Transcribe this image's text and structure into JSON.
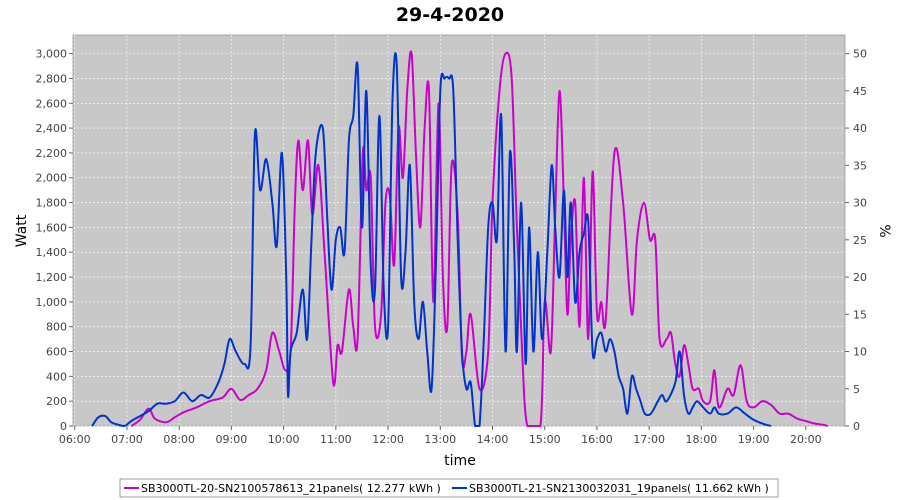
{
  "chart_data": {
    "type": "line",
    "title": "29-4-2020",
    "xlabel": "time",
    "ylabel": "Watt",
    "y2label": "%",
    "x_ticks": [
      "06:00",
      "07:00",
      "08:00",
      "09:00",
      "10:00",
      "11:00",
      "12:00",
      "13:00",
      "14:00",
      "15:00",
      "16:00",
      "17:00",
      "18:00",
      "19:00",
      "20:00"
    ],
    "xlim": [
      "05:58",
      "20:45"
    ],
    "ylim": [
      0,
      3150
    ],
    "y_ticks": [
      "0",
      "200",
      "400",
      "600",
      "800",
      "1,000",
      "1,200",
      "1,400",
      "1,600",
      "1,800",
      "2,000",
      "2,200",
      "2,400",
      "2,600",
      "2,800",
      "3,000"
    ],
    "y2lim": [
      0,
      52.5
    ],
    "y2_ticks": [
      "0",
      "5",
      "10",
      "15",
      "20",
      "25",
      "30",
      "35",
      "40",
      "45",
      "50"
    ],
    "grid": true,
    "legend_position": "bottom",
    "colors": {
      "plot_bg": "#c8c8c8",
      "grid": "#ffffff"
    },
    "series": [
      {
        "name": "SB3000TL-20-SN2100578613_21panels( 12.277 kWh )",
        "color": "#cc00cc",
        "points": [
          [
            "07:05",
            0
          ],
          [
            "07:15",
            50
          ],
          [
            "07:25",
            140
          ],
          [
            "07:32",
            60
          ],
          [
            "07:45",
            30
          ],
          [
            "07:55",
            70
          ],
          [
            "08:05",
            110
          ],
          [
            "08:20",
            150
          ],
          [
            "08:35",
            200
          ],
          [
            "08:50",
            230
          ],
          [
            "09:00",
            300
          ],
          [
            "09:10",
            210
          ],
          [
            "09:20",
            250
          ],
          [
            "09:30",
            300
          ],
          [
            "09:40",
            450
          ],
          [
            "09:47",
            750
          ],
          [
            "09:55",
            600
          ],
          [
            "10:02",
            450
          ],
          [
            "10:08",
            600
          ],
          [
            "10:13",
            1800
          ],
          [
            "10:17",
            2300
          ],
          [
            "10:22",
            1900
          ],
          [
            "10:28",
            2300
          ],
          [
            "10:33",
            1700
          ],
          [
            "10:40",
            2100
          ],
          [
            "10:47",
            1400
          ],
          [
            "10:57",
            350
          ],
          [
            "11:02",
            650
          ],
          [
            "11:07",
            600
          ],
          [
            "11:15",
            1100
          ],
          [
            "11:20",
            800
          ],
          [
            "11:25",
            700
          ],
          [
            "11:31",
            2200
          ],
          [
            "11:35",
            1900
          ],
          [
            "11:40",
            2000
          ],
          [
            "11:45",
            800
          ],
          [
            "11:52",
            900
          ],
          [
            "11:57",
            1800
          ],
          [
            "12:02",
            1850
          ],
          [
            "12:07",
            1300
          ],
          [
            "12:12",
            2400
          ],
          [
            "12:17",
            2000
          ],
          [
            "12:22",
            2700
          ],
          [
            "12:27",
            3000
          ],
          [
            "12:32",
            2200
          ],
          [
            "12:37",
            1600
          ],
          [
            "12:42",
            2400
          ],
          [
            "12:47",
            2700
          ],
          [
            "12:52",
            1000
          ],
          [
            "12:58",
            2600
          ],
          [
            "13:03",
            1200
          ],
          [
            "13:08",
            800
          ],
          [
            "13:13",
            2100
          ],
          [
            "13:20",
            1700
          ],
          [
            "13:25",
            550
          ],
          [
            "13:30",
            600
          ],
          [
            "13:35",
            900
          ],
          [
            "13:45",
            300
          ],
          [
            "13:55",
            600
          ],
          [
            "14:00",
            1800
          ],
          [
            "14:08",
            2700
          ],
          [
            "14:15",
            3000
          ],
          [
            "14:22",
            2800
          ],
          [
            "14:28",
            1600
          ],
          [
            "14:34",
            600
          ],
          [
            "14:40",
            0
          ],
          [
            "14:55",
            0
          ],
          [
            "15:00",
            1000
          ],
          [
            "15:07",
            600
          ],
          [
            "15:12",
            1700
          ],
          [
            "15:17",
            2700
          ],
          [
            "15:22",
            1800
          ],
          [
            "15:26",
            900
          ],
          [
            "15:30",
            1500
          ],
          [
            "15:35",
            1800
          ],
          [
            "15:40",
            800
          ],
          [
            "15:45",
            2000
          ],
          [
            "15:50",
            700
          ],
          [
            "15:55",
            2050
          ],
          [
            "16:00",
            900
          ],
          [
            "16:05",
            1000
          ],
          [
            "16:10",
            850
          ],
          [
            "16:20",
            2200
          ],
          [
            "16:30",
            1800
          ],
          [
            "16:40",
            900
          ],
          [
            "16:46",
            1500
          ],
          [
            "16:54",
            1800
          ],
          [
            "17:01",
            1500
          ],
          [
            "17:07",
            1500
          ],
          [
            "17:12",
            700
          ],
          [
            "17:20",
            700
          ],
          [
            "17:25",
            750
          ],
          [
            "17:30",
            500
          ],
          [
            "17:35",
            400
          ],
          [
            "17:40",
            650
          ],
          [
            "17:45",
            500
          ],
          [
            "17:50",
            300
          ],
          [
            "17:57",
            300
          ],
          [
            "18:02",
            200
          ],
          [
            "18:10",
            200
          ],
          [
            "18:15",
            450
          ],
          [
            "18:20",
            150
          ],
          [
            "18:30",
            300
          ],
          [
            "18:37",
            250
          ],
          [
            "18:45",
            490
          ],
          [
            "18:52",
            200
          ],
          [
            "19:00",
            150
          ],
          [
            "19:10",
            200
          ],
          [
            "19:20",
            170
          ],
          [
            "19:30",
            100
          ],
          [
            "19:40",
            100
          ],
          [
            "19:50",
            60
          ],
          [
            "20:00",
            40
          ],
          [
            "20:10",
            20
          ],
          [
            "20:20",
            10
          ],
          [
            "20:25",
            0
          ]
        ]
      },
      {
        "name": "SB3000TL-21-SN2130032031_19panels( 11.662 kWh )",
        "color": "#0033cc",
        "points": [
          [
            "06:20",
            0
          ],
          [
            "06:27",
            70
          ],
          [
            "06:35",
            80
          ],
          [
            "06:42",
            30
          ],
          [
            "06:50",
            10
          ],
          [
            "06:57",
            0
          ],
          [
            "07:05",
            40
          ],
          [
            "07:15",
            80
          ],
          [
            "07:25",
            120
          ],
          [
            "07:35",
            180
          ],
          [
            "07:45",
            180
          ],
          [
            "07:55",
            200
          ],
          [
            "08:05",
            270
          ],
          [
            "08:15",
            200
          ],
          [
            "08:25",
            250
          ],
          [
            "08:35",
            230
          ],
          [
            "08:45",
            350
          ],
          [
            "08:52",
            500
          ],
          [
            "08:58",
            700
          ],
          [
            "09:05",
            600
          ],
          [
            "09:15",
            500
          ],
          [
            "09:22",
            650
          ],
          [
            "09:27",
            2350
          ],
          [
            "09:33",
            1900
          ],
          [
            "09:40",
            2150
          ],
          [
            "09:47",
            1800
          ],
          [
            "09:52",
            1450
          ],
          [
            "09:58",
            2200
          ],
          [
            "10:03",
            1200
          ],
          [
            "10:05",
            250
          ],
          [
            "10:08",
            600
          ],
          [
            "10:15",
            750
          ],
          [
            "10:22",
            1100
          ],
          [
            "10:27",
            700
          ],
          [
            "10:32",
            1500
          ],
          [
            "10:37",
            2200
          ],
          [
            "10:45",
            2400
          ],
          [
            "10:50",
            1700
          ],
          [
            "10:55",
            1100
          ],
          [
            "11:00",
            1500
          ],
          [
            "11:05",
            1600
          ],
          [
            "11:10",
            1400
          ],
          [
            "11:15",
            2300
          ],
          [
            "11:20",
            2500
          ],
          [
            "11:25",
            2900
          ],
          [
            "11:30",
            1600
          ],
          [
            "11:35",
            2700
          ],
          [
            "11:40",
            1300
          ],
          [
            "11:45",
            1100
          ],
          [
            "11:50",
            2500
          ],
          [
            "11:55",
            1100
          ],
          [
            "12:00",
            800
          ],
          [
            "12:05",
            2600
          ],
          [
            "12:10",
            2900
          ],
          [
            "12:15",
            1200
          ],
          [
            "12:20",
            1400
          ],
          [
            "12:25",
            2100
          ],
          [
            "12:30",
            1000
          ],
          [
            "12:35",
            700
          ],
          [
            "12:40",
            1000
          ],
          [
            "12:45",
            600
          ],
          [
            "12:50",
            300
          ],
          [
            "12:55",
            1300
          ],
          [
            "13:00",
            2700
          ],
          [
            "13:05",
            2800
          ],
          [
            "13:10",
            2800
          ],
          [
            "13:15",
            2700
          ],
          [
            "13:20",
            1500
          ],
          [
            "13:25",
            600
          ],
          [
            "13:30",
            300
          ],
          [
            "13:35",
            350
          ],
          [
            "13:40",
            0
          ],
          [
            "13:45",
            0
          ],
          [
            "13:50",
            700
          ],
          [
            "13:55",
            1600
          ],
          [
            "14:00",
            1800
          ],
          [
            "14:05",
            1500
          ],
          [
            "14:10",
            2500
          ],
          [
            "14:15",
            600
          ],
          [
            "14:20",
            2200
          ],
          [
            "14:25",
            1400
          ],
          [
            "14:28",
            600
          ],
          [
            "14:33",
            1800
          ],
          [
            "14:38",
            500
          ],
          [
            "14:42",
            1600
          ],
          [
            "14:47",
            600
          ],
          [
            "14:52",
            1400
          ],
          [
            "14:57",
            700
          ],
          [
            "15:03",
            1400
          ],
          [
            "15:08",
            2100
          ],
          [
            "15:12",
            1600
          ],
          [
            "15:17",
            1200
          ],
          [
            "15:22",
            1900
          ],
          [
            "15:26",
            1200
          ],
          [
            "15:30",
            1800
          ],
          [
            "15:35",
            1000
          ],
          [
            "15:40",
            1400
          ],
          [
            "15:45",
            1550
          ],
          [
            "15:50",
            1650
          ],
          [
            "15:55",
            600
          ],
          [
            "16:00",
            700
          ],
          [
            "16:05",
            750
          ],
          [
            "16:10",
            600
          ],
          [
            "16:15",
            700
          ],
          [
            "16:20",
            600
          ],
          [
            "16:25",
            400
          ],
          [
            "16:30",
            300
          ],
          [
            "16:35",
            100
          ],
          [
            "16:40",
            400
          ],
          [
            "16:45",
            300
          ],
          [
            "16:50",
            200
          ],
          [
            "16:55",
            100
          ],
          [
            "17:02",
            100
          ],
          [
            "17:10",
            200
          ],
          [
            "17:15",
            250
          ],
          [
            "17:20",
            200
          ],
          [
            "17:30",
            350
          ],
          [
            "17:35",
            600
          ],
          [
            "17:40",
            250
          ],
          [
            "17:45",
            100
          ],
          [
            "17:50",
            150
          ],
          [
            "17:55",
            200
          ],
          [
            "18:02",
            150
          ],
          [
            "18:10",
            100
          ],
          [
            "18:15",
            150
          ],
          [
            "18:20",
            100
          ],
          [
            "18:30",
            100
          ],
          [
            "18:40",
            150
          ],
          [
            "18:50",
            100
          ],
          [
            "19:00",
            50
          ],
          [
            "19:10",
            20
          ],
          [
            "19:20",
            0
          ]
        ]
      }
    ]
  }
}
